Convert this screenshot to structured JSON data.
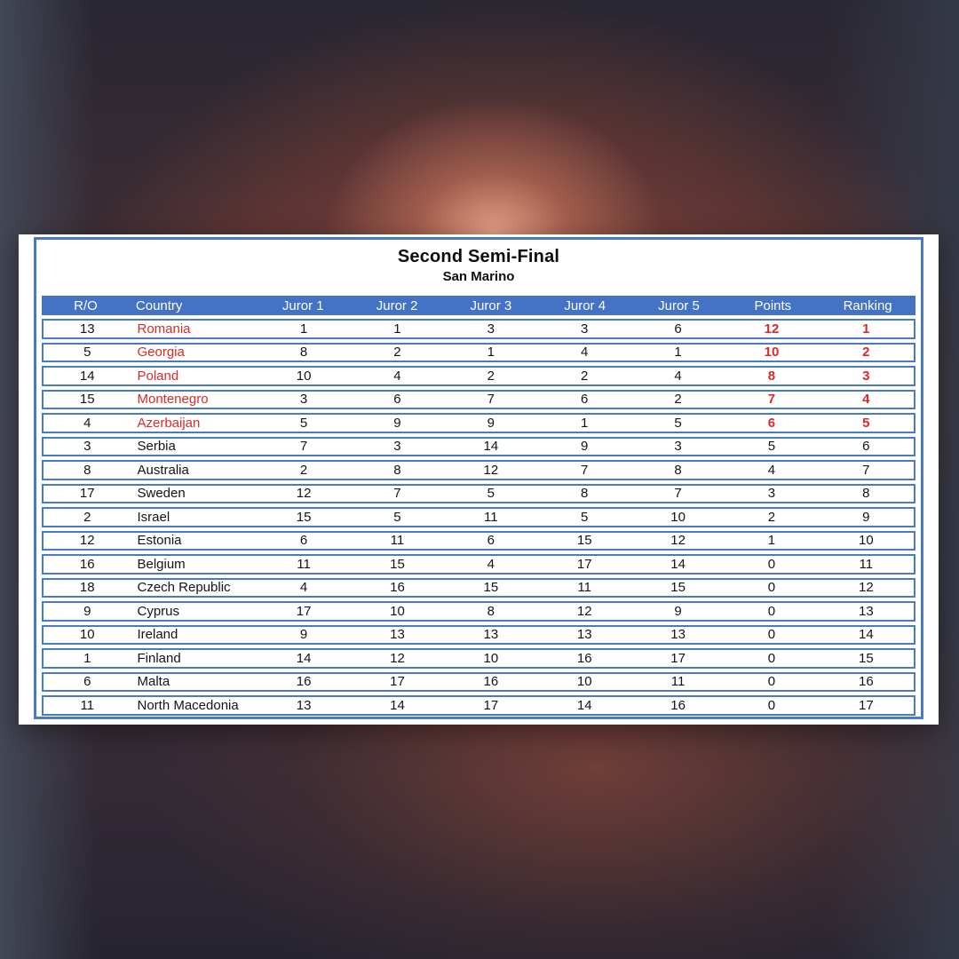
{
  "title": "Second Semi-Final",
  "subtitle": "San Marino",
  "table": {
    "columns": [
      "R/O",
      "Country",
      "Juror 1",
      "Juror 2",
      "Juror 3",
      "Juror 4",
      "Juror 5",
      "Points",
      "Ranking"
    ],
    "rows": [
      {
        "ro": "13",
        "country": "Romania",
        "jurors": [
          "1",
          "1",
          "3",
          "3",
          "6"
        ],
        "points": "12",
        "ranking": "1",
        "qualified": true
      },
      {
        "ro": "5",
        "country": "Georgia",
        "jurors": [
          "8",
          "2",
          "1",
          "4",
          "1"
        ],
        "points": "10",
        "ranking": "2",
        "qualified": true
      },
      {
        "ro": "14",
        "country": "Poland",
        "jurors": [
          "10",
          "4",
          "2",
          "2",
          "4"
        ],
        "points": "8",
        "ranking": "3",
        "qualified": true
      },
      {
        "ro": "15",
        "country": "Montenegro",
        "jurors": [
          "3",
          "6",
          "7",
          "6",
          "2"
        ],
        "points": "7",
        "ranking": "4",
        "qualified": true
      },
      {
        "ro": "4",
        "country": "Azerbaijan",
        "jurors": [
          "5",
          "9",
          "9",
          "1",
          "5"
        ],
        "points": "6",
        "ranking": "5",
        "qualified": true
      },
      {
        "ro": "3",
        "country": "Serbia",
        "jurors": [
          "7",
          "3",
          "14",
          "9",
          "3"
        ],
        "points": "5",
        "ranking": "6",
        "qualified": false
      },
      {
        "ro": "8",
        "country": "Australia",
        "jurors": [
          "2",
          "8",
          "12",
          "7",
          "8"
        ],
        "points": "4",
        "ranking": "7",
        "qualified": false
      },
      {
        "ro": "17",
        "country": "Sweden",
        "jurors": [
          "12",
          "7",
          "5",
          "8",
          "7"
        ],
        "points": "3",
        "ranking": "8",
        "qualified": false
      },
      {
        "ro": "2",
        "country": "Israel",
        "jurors": [
          "15",
          "5",
          "11",
          "5",
          "10"
        ],
        "points": "2",
        "ranking": "9",
        "qualified": false
      },
      {
        "ro": "12",
        "country": "Estonia",
        "jurors": [
          "6",
          "11",
          "6",
          "15",
          "12"
        ],
        "points": "1",
        "ranking": "10",
        "qualified": false
      },
      {
        "ro": "16",
        "country": "Belgium",
        "jurors": [
          "11",
          "15",
          "4",
          "17",
          "14"
        ],
        "points": "0",
        "ranking": "11",
        "qualified": false
      },
      {
        "ro": "18",
        "country": "Czech Republic",
        "jurors": [
          "4",
          "16",
          "15",
          "11",
          "15"
        ],
        "points": "0",
        "ranking": "12",
        "qualified": false
      },
      {
        "ro": "9",
        "country": "Cyprus",
        "jurors": [
          "17",
          "10",
          "8",
          "12",
          "9"
        ],
        "points": "0",
        "ranking": "13",
        "qualified": false
      },
      {
        "ro": "10",
        "country": "Ireland",
        "jurors": [
          "9",
          "13",
          "13",
          "13",
          "13"
        ],
        "points": "0",
        "ranking": "14",
        "qualified": false
      },
      {
        "ro": "1",
        "country": "Finland",
        "jurors": [
          "14",
          "12",
          "10",
          "16",
          "17"
        ],
        "points": "0",
        "ranking": "15",
        "qualified": false
      },
      {
        "ro": "6",
        "country": "Malta",
        "jurors": [
          "16",
          "17",
          "16",
          "10",
          "11"
        ],
        "points": "0",
        "ranking": "16",
        "qualified": false
      },
      {
        "ro": "11",
        "country": "North Macedonia",
        "jurors": [
          "13",
          "14",
          "17",
          "14",
          "16"
        ],
        "points": "0",
        "ranking": "17",
        "qualified": false
      }
    ]
  },
  "colors": {
    "header_blue": "#4472c4",
    "border_blue": "#4a7ac4",
    "qualifier_red": "#d92a2a",
    "panel_bg": "#ffffff"
  }
}
